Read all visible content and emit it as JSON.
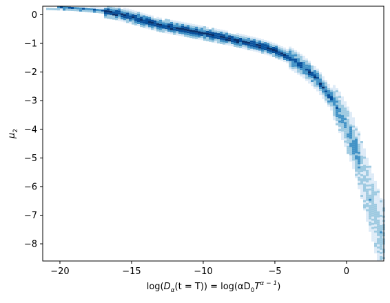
{
  "chart_data": {
    "type": "heatmap",
    "title": "",
    "xlabel": {
      "prefix": "log(",
      "d": "D",
      "alpha_sub": "α",
      "inner": "(t = T)) = log(αD",
      "zero_sub": "0",
      "t": "T",
      "exp": "α − 1",
      "close": ")"
    },
    "ylabel": {
      "mu": "μ",
      "sub": "2"
    },
    "xlim": [
      -21.2,
      2.6
    ],
    "ylim": [
      -8.6,
      0.3
    ],
    "xticks": [
      -20,
      -15,
      -10,
      -5,
      0
    ],
    "xtick_labels": [
      "−20",
      "−15",
      "−10",
      "−5",
      "0"
    ],
    "yticks": [
      0,
      -1,
      -2,
      -3,
      -4,
      -5,
      -6,
      -7,
      -8
    ],
    "ytick_labels": [
      "0",
      "−1",
      "−2",
      "−3",
      "−4",
      "−5",
      "−6",
      "−7",
      "−8"
    ],
    "colormap": [
      "#deebf7",
      "#9ecae1",
      "#4292c6",
      "#08519c",
      "#08306b"
    ],
    "grid": false,
    "legend": "none",
    "curve": {
      "x": [
        -21.0,
        -20.0,
        -19.0,
        -18.0,
        -17.0,
        -16.0,
        -15.0,
        -14.0,
        -13.0,
        -12.0,
        -11.0,
        -10.0,
        -9.0,
        -8.0,
        -7.0,
        -6.0,
        -5.0,
        -4.0,
        -3.0,
        -2.0,
        -1.0,
        -0.5,
        0.0,
        0.5,
        1.0,
        1.5,
        2.0,
        2.5
      ],
      "y": [
        0.3,
        0.28,
        0.26,
        0.22,
        0.17,
        0.08,
        -0.05,
        -0.2,
        -0.33,
        -0.43,
        -0.52,
        -0.62,
        -0.72,
        -0.82,
        -0.94,
        -1.06,
        -1.22,
        -1.45,
        -1.78,
        -2.25,
        -2.95,
        -3.35,
        -3.9,
        -4.5,
        -5.25,
        -6.2,
        -7.0,
        -7.8
      ]
    }
  }
}
